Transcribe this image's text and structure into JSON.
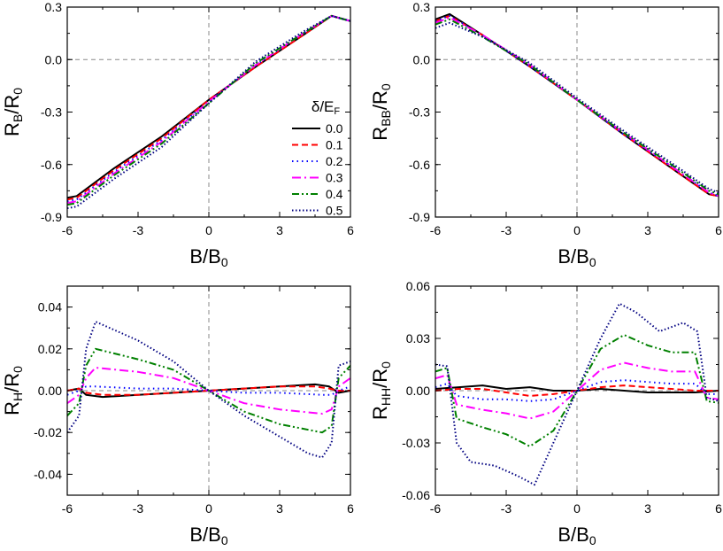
{
  "chart_data": [
    {
      "type": "line",
      "id": "top-left",
      "xlabel": "B/B",
      "xlabel_sub": "0",
      "ylabel": "R",
      "ylabel_sub": "B",
      "ylabel_tail": "/R",
      "ylabel_tail_sub": "0",
      "xlim": [
        -6,
        6
      ],
      "ylim": [
        -0.9,
        0.3
      ],
      "xticks": [
        "-6",
        "-3",
        "0",
        "3",
        "6"
      ],
      "yticks": [
        "-0.9",
        "-0.6",
        "-0.3",
        "0.0",
        "0.3"
      ],
      "xtick_values": [
        -6,
        -3,
        0,
        3,
        6
      ],
      "ytick_values": [
        -0.9,
        -0.6,
        -0.3,
        0.0,
        0.3
      ],
      "guides": {
        "x": 0,
        "y": 0
      },
      "legend": {
        "title": "δ/E",
        "title_sub": "F",
        "entries": [
          "0.0",
          "0.1",
          "0.2",
          "0.3",
          "0.4",
          "0.5"
        ]
      },
      "series": [
        {
          "name": "0.0",
          "x": [
            -6,
            -5.6,
            -4,
            -2,
            0,
            2,
            4,
            5.2,
            6
          ],
          "y": [
            -0.79,
            -0.78,
            -0.62,
            -0.44,
            -0.23,
            -0.04,
            0.14,
            0.25,
            0.22
          ]
        },
        {
          "name": "0.1",
          "x": [
            -6,
            -5.6,
            -4,
            -2,
            0,
            2,
            4,
            5.2,
            6
          ],
          "y": [
            -0.8,
            -0.79,
            -0.63,
            -0.45,
            -0.23,
            -0.04,
            0.14,
            0.25,
            0.22
          ]
        },
        {
          "name": "0.2",
          "x": [
            -6,
            -5.6,
            -4,
            -2,
            0,
            2,
            4,
            5.2,
            6
          ],
          "y": [
            -0.81,
            -0.8,
            -0.64,
            -0.46,
            -0.24,
            -0.03,
            0.15,
            0.25,
            0.22
          ]
        },
        {
          "name": "0.3",
          "x": [
            -6,
            -5.6,
            -4,
            -2,
            0,
            2,
            4,
            5.2,
            6
          ],
          "y": [
            -0.82,
            -0.81,
            -0.65,
            -0.47,
            -0.24,
            -0.03,
            0.15,
            0.25,
            0.22
          ]
        },
        {
          "name": "0.4",
          "x": [
            -6,
            -5.6,
            -4,
            -2,
            0,
            2,
            4,
            5.2,
            6
          ],
          "y": [
            -0.83,
            -0.82,
            -0.66,
            -0.48,
            -0.25,
            -0.02,
            0.15,
            0.25,
            0.22
          ]
        },
        {
          "name": "0.5",
          "x": [
            -6,
            -5.6,
            -4,
            -2,
            0,
            2,
            4,
            5.2,
            6
          ],
          "y": [
            -0.85,
            -0.84,
            -0.68,
            -0.5,
            -0.25,
            -0.01,
            0.16,
            0.25,
            0.22
          ]
        }
      ]
    },
    {
      "type": "line",
      "id": "top-right",
      "xlabel": "B/B",
      "xlabel_sub": "0",
      "ylabel": "R",
      "ylabel_sub": "BB",
      "ylabel_tail": "/R",
      "ylabel_tail_sub": "0",
      "xlim": [
        -6,
        6
      ],
      "ylim": [
        -0.9,
        0.3
      ],
      "xticks": [
        "-6",
        "-3",
        "0",
        "3",
        "6"
      ],
      "yticks": [
        "-0.9",
        "-0.6",
        "-0.3",
        "0.0",
        "0.3"
      ],
      "xtick_values": [
        -6,
        -3,
        0,
        3,
        6
      ],
      "ytick_values": [
        -0.9,
        -0.6,
        -0.3,
        0.0,
        0.3
      ],
      "guides": {
        "x": 0,
        "y": 0
      },
      "series": [
        {
          "name": "0.0",
          "x": [
            -6,
            -5.4,
            -4,
            -2,
            0,
            2,
            4,
            5.6,
            6
          ],
          "y": [
            0.23,
            0.26,
            0.14,
            -0.04,
            -0.23,
            -0.43,
            -0.62,
            -0.77,
            -0.78
          ]
        },
        {
          "name": "0.1",
          "x": [
            -6,
            -5.4,
            -4,
            -2,
            0,
            2,
            4,
            5.6,
            6
          ],
          "y": [
            0.22,
            0.25,
            0.14,
            -0.04,
            -0.23,
            -0.43,
            -0.62,
            -0.77,
            -0.78
          ]
        },
        {
          "name": "0.2",
          "x": [
            -6,
            -5.4,
            -4,
            -2,
            0,
            2,
            4,
            5.6,
            6
          ],
          "y": [
            0.22,
            0.25,
            0.14,
            -0.04,
            -0.23,
            -0.43,
            -0.61,
            -0.76,
            -0.78
          ]
        },
        {
          "name": "0.3",
          "x": [
            -6,
            -5.4,
            -4,
            -2,
            0,
            2,
            4,
            5.6,
            6
          ],
          "y": [
            0.21,
            0.24,
            0.14,
            -0.03,
            -0.23,
            -0.42,
            -0.61,
            -0.76,
            -0.78
          ]
        },
        {
          "name": "0.4",
          "x": [
            -6,
            -5.4,
            -4,
            -2,
            0,
            2,
            4,
            5.6,
            6
          ],
          "y": [
            0.2,
            0.23,
            0.13,
            -0.03,
            -0.23,
            -0.42,
            -0.6,
            -0.75,
            -0.77
          ]
        },
        {
          "name": "0.5",
          "x": [
            -6,
            -5.4,
            -4,
            -2,
            0,
            2,
            4,
            5.6,
            6
          ],
          "y": [
            0.18,
            0.21,
            0.13,
            -0.02,
            -0.22,
            -0.41,
            -0.59,
            -0.74,
            -0.76
          ]
        }
      ]
    },
    {
      "type": "line",
      "id": "bottom-left",
      "xlabel": "B/B",
      "xlabel_sub": "0",
      "ylabel": "R",
      "ylabel_sub": "H",
      "ylabel_tail": "/R",
      "ylabel_tail_sub": "0",
      "xlim": [
        -6,
        6
      ],
      "ylim": [
        -0.05,
        0.05
      ],
      "xticks": [
        "-6",
        "-3",
        "0",
        "3",
        "6"
      ],
      "yticks": [
        "-0.04",
        "-0.02",
        "0.00",
        "0.02",
        "0.04"
      ],
      "xtick_values": [
        -6,
        -3,
        0,
        3,
        6
      ],
      "ytick_values": [
        -0.04,
        -0.02,
        0.0,
        0.02,
        0.04
      ],
      "guides": {
        "x": 0,
        "y": 0
      },
      "series": [
        {
          "name": "0.0",
          "x": [
            -6,
            -5.5,
            -5.2,
            -4.5,
            -3,
            -1.5,
            0,
            1.5,
            3,
            4.5,
            5.1,
            5.5,
            6
          ],
          "y": [
            0.0,
            0.001,
            -0.002,
            -0.003,
            -0.002,
            -0.001,
            0.0,
            0.001,
            0.002,
            0.003,
            0.002,
            -0.001,
            0.0
          ]
        },
        {
          "name": "0.1",
          "x": [
            -6,
            -5.5,
            -5.2,
            -4.5,
            -3,
            -1.5,
            0,
            1.5,
            3,
            4.5,
            5.1,
            5.5,
            6
          ],
          "y": [
            0.0,
            0.001,
            -0.001,
            -0.002,
            -0.002,
            -0.001,
            0.0,
            0.001,
            0.002,
            0.002,
            0.001,
            0.0,
            0.0
          ]
        },
        {
          "name": "0.2",
          "x": [
            -6,
            -5.5,
            -5.2,
            -4.8,
            -3,
            -1.5,
            0,
            1.5,
            3,
            4.8,
            5.2,
            5.5,
            6
          ],
          "y": [
            -0.002,
            0.0,
            0.002,
            0.002,
            0.001,
            0.001,
            0.0,
            -0.001,
            -0.001,
            -0.002,
            -0.002,
            0.0,
            0.002
          ]
        },
        {
          "name": "0.3",
          "x": [
            -6,
            -5.5,
            -5.2,
            -4.8,
            -3,
            -1.5,
            0,
            1.5,
            3,
            4.8,
            5.2,
            5.5,
            6
          ],
          "y": [
            -0.006,
            -0.002,
            0.006,
            0.011,
            0.009,
            0.006,
            0.0,
            -0.006,
            -0.009,
            -0.011,
            -0.009,
            0.002,
            0.006
          ]
        },
        {
          "name": "0.4",
          "x": [
            -6,
            -5.5,
            -5.2,
            -4.8,
            -3,
            -1.5,
            0,
            1.5,
            3,
            4.8,
            5.2,
            5.5,
            6
          ],
          "y": [
            -0.012,
            -0.006,
            0.012,
            0.02,
            0.015,
            0.01,
            0.0,
            -0.01,
            -0.016,
            -0.02,
            -0.017,
            0.006,
            0.012
          ]
        },
        {
          "name": "0.5",
          "x": [
            -6,
            -5.5,
            -5.2,
            -4.8,
            -4.2,
            -3,
            -1.5,
            0,
            1.5,
            3,
            4.2,
            4.8,
            5.2,
            5.5,
            6
          ],
          "y": [
            -0.02,
            -0.012,
            0.02,
            0.033,
            0.03,
            0.024,
            0.014,
            0.0,
            -0.012,
            -0.022,
            -0.03,
            -0.032,
            -0.025,
            0.012,
            0.014
          ]
        }
      ]
    },
    {
      "type": "line",
      "id": "bottom-right",
      "xlabel": "B/B",
      "xlabel_sub": "0",
      "ylabel": "R",
      "ylabel_sub": "HH",
      "ylabel_tail": "/R",
      "ylabel_tail_sub": "0",
      "xlim": [
        -6,
        6
      ],
      "ylim": [
        -0.06,
        0.06
      ],
      "xticks": [
        "-6",
        "-3",
        "0",
        "3",
        "6"
      ],
      "yticks": [
        "-0.06",
        "-0.03",
        "0.00",
        "0.03",
        "0.06"
      ],
      "xtick_values": [
        -6,
        -3,
        0,
        3,
        6
      ],
      "ytick_values": [
        -0.06,
        -0.03,
        0.0,
        0.03,
        0.06
      ],
      "guides": {
        "x": 0,
        "y": 0
      },
      "series": [
        {
          "name": "0.0",
          "x": [
            -6,
            -5,
            -4,
            -3,
            -2,
            -1,
            0,
            1,
            2,
            3,
            4,
            5,
            6
          ],
          "y": [
            0.001,
            0.002,
            0.003,
            0.001,
            0.002,
            0.0,
            0.0,
            0.001,
            0.0,
            -0.001,
            -0.001,
            -0.001,
            0.0
          ]
        },
        {
          "name": "0.1",
          "x": [
            -6,
            -5,
            -4,
            -3,
            -2,
            -1,
            0,
            1,
            2,
            3,
            4,
            5,
            6
          ],
          "y": [
            0.0,
            0.001,
            0.001,
            -0.001,
            -0.003,
            -0.002,
            0.0,
            0.002,
            0.003,
            0.002,
            0.001,
            0.0,
            0.0
          ]
        },
        {
          "name": "0.2",
          "x": [
            -6,
            -5.5,
            -5.1,
            -4,
            -3,
            -2,
            -1,
            0,
            1,
            2,
            3,
            4,
            5,
            5.5,
            6
          ],
          "y": [
            0.002,
            0.004,
            -0.003,
            -0.005,
            -0.005,
            -0.006,
            -0.005,
            0.0,
            0.005,
            0.006,
            0.005,
            0.004,
            0.004,
            -0.002,
            -0.002
          ]
        },
        {
          "name": "0.3",
          "x": [
            -6,
            -5.5,
            -5.1,
            -4,
            -3,
            -2,
            -1,
            0,
            1,
            2,
            3,
            4,
            5,
            5.5,
            6
          ],
          "y": [
            0.007,
            0.009,
            -0.008,
            -0.011,
            -0.013,
            -0.016,
            -0.012,
            0.0,
            0.012,
            0.016,
            0.013,
            0.011,
            0.011,
            -0.004,
            -0.005
          ]
        },
        {
          "name": "0.4",
          "x": [
            -6,
            -5.5,
            -5.1,
            -4,
            -3,
            -2,
            -1,
            0,
            1,
            2,
            3,
            4,
            5,
            5.5,
            6
          ],
          "y": [
            0.011,
            0.013,
            -0.016,
            -0.021,
            -0.025,
            -0.032,
            -0.023,
            0.0,
            0.024,
            0.032,
            0.026,
            0.022,
            0.022,
            -0.006,
            -0.007
          ]
        },
        {
          "name": "0.5",
          "x": [
            -6,
            -5.5,
            -5.1,
            -4.5,
            -3.5,
            -2.5,
            -1.8,
            -1,
            0,
            1,
            1.8,
            2.5,
            3.5,
            4.5,
            5.1,
            5.5,
            6
          ],
          "y": [
            0.015,
            0.014,
            -0.03,
            -0.041,
            -0.043,
            -0.049,
            -0.054,
            -0.03,
            0.0,
            0.03,
            0.05,
            0.045,
            0.034,
            0.039,
            0.034,
            -0.004,
            -0.006
          ]
        }
      ]
    }
  ],
  "styles": [
    {
      "name": "0.0",
      "color": "#000000",
      "dash": "none",
      "width": 2.0
    },
    {
      "name": "0.1",
      "color": "#ff0000",
      "dash": "7,4",
      "width": 2.0
    },
    {
      "name": "0.2",
      "color": "#0000ff",
      "dash": "1.5,4",
      "width": 2.0
    },
    {
      "name": "0.3",
      "color": "#ff00ff",
      "dash": "10,4,2,4",
      "width": 2.0
    },
    {
      "name": "0.4",
      "color": "#008000",
      "dash": "8,3,2,3,2,3",
      "width": 2.0
    },
    {
      "name": "0.5",
      "color": "#000080",
      "dash": "1.5,2.5",
      "width": 2.0
    }
  ]
}
